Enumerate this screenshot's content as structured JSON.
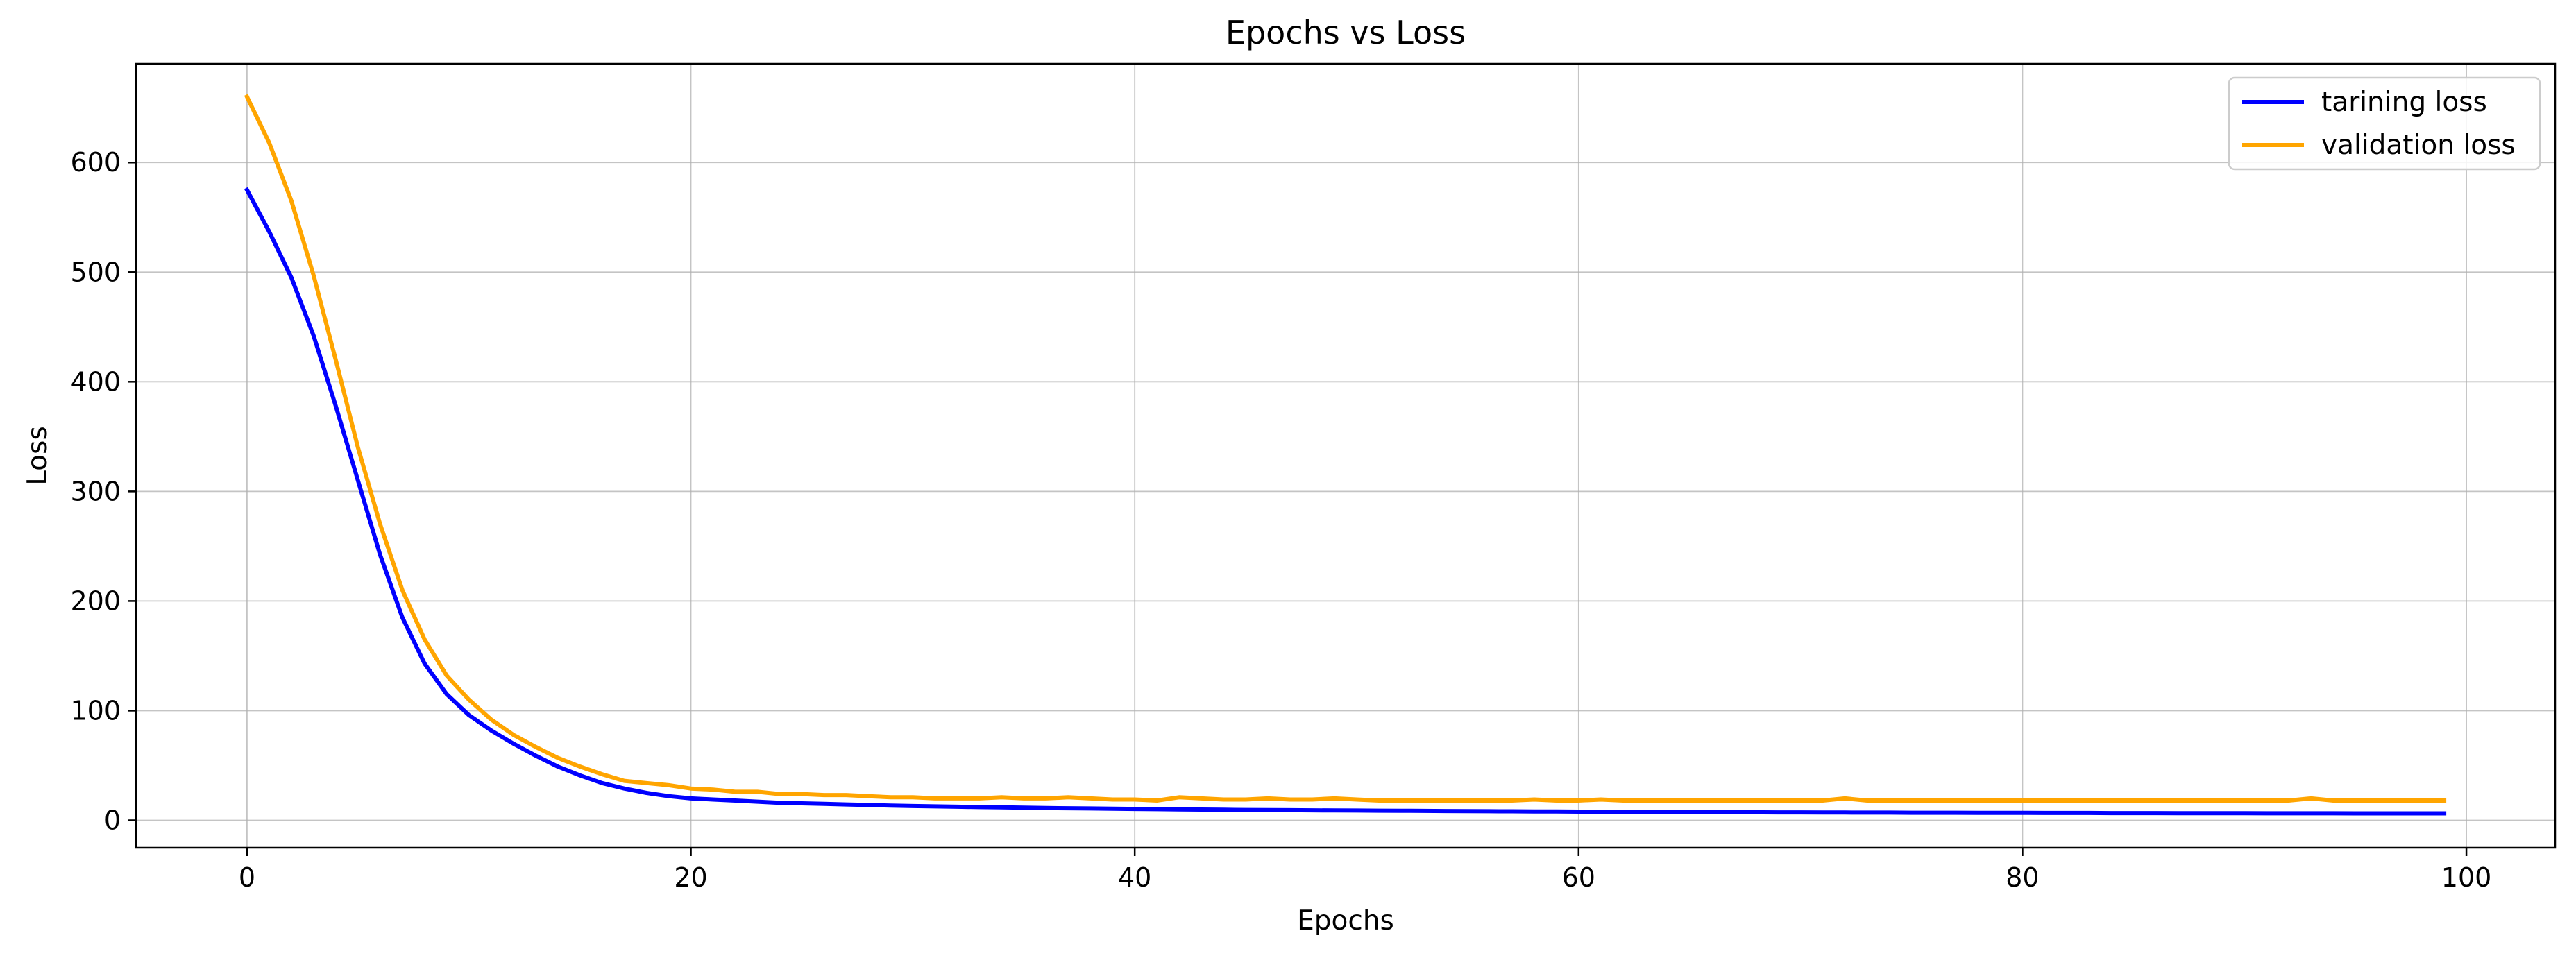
{
  "chart_data": {
    "type": "line",
    "title": "Epochs vs Loss",
    "xlabel": "Epochs",
    "ylabel": "Loss",
    "xlim": [
      -5,
      104
    ],
    "ylim": [
      -25,
      690
    ],
    "x_ticks": [
      0,
      20,
      40,
      60,
      80,
      100
    ],
    "y_ticks": [
      0,
      100,
      200,
      300,
      400,
      500,
      600
    ],
    "grid": true,
    "legend_position": "top-right",
    "x": [
      0,
      1,
      2,
      3,
      4,
      5,
      6,
      7,
      8,
      9,
      10,
      11,
      12,
      13,
      14,
      15,
      16,
      17,
      18,
      19,
      20,
      21,
      22,
      23,
      24,
      25,
      26,
      27,
      28,
      29,
      30,
      31,
      32,
      33,
      34,
      35,
      36,
      37,
      38,
      39,
      40,
      41,
      42,
      43,
      44,
      45,
      46,
      47,
      48,
      49,
      50,
      51,
      52,
      53,
      54,
      55,
      56,
      57,
      58,
      59,
      60,
      61,
      62,
      63,
      64,
      65,
      66,
      67,
      68,
      69,
      70,
      71,
      72,
      73,
      74,
      75,
      76,
      77,
      78,
      79,
      80,
      81,
      82,
      83,
      84,
      85,
      86,
      87,
      88,
      89,
      90,
      91,
      92,
      93,
      94,
      95,
      96,
      97,
      98,
      99
    ],
    "series": [
      {
        "name": "tarining loss",
        "color": "#0000ff",
        "values": [
          575,
          537,
          495,
          442,
          378,
          310,
          242,
          185,
          143,
          115,
          96,
          82,
          70,
          59,
          49,
          41,
          34,
          29,
          25,
          22,
          20,
          19,
          18,
          17,
          16,
          15.5,
          15,
          14.5,
          14,
          13.5,
          13,
          12.7,
          12.4,
          12.1,
          11.8,
          11.5,
          11.2,
          11,
          10.8,
          10.6,
          10.4,
          10.2,
          10,
          9.8,
          9.6,
          9.4,
          9.3,
          9.2,
          9.1,
          9,
          8.9,
          8.8,
          8.7,
          8.6,
          8.5,
          8.4,
          8.3,
          8.2,
          8.1,
          8,
          7.9,
          7.8,
          7.7,
          7.6,
          7.5,
          7.5,
          7.4,
          7.3,
          7.3,
          7.2,
          7.2,
          7.1,
          7.1,
          7,
          7,
          6.9,
          6.9,
          6.9,
          6.8,
          6.8,
          6.8,
          6.7,
          6.7,
          6.7,
          6.6,
          6.6,
          6.6,
          6.5,
          6.5,
          6.5,
          6.5,
          6.4,
          6.4,
          6.4,
          6.4,
          6.3,
          6.3,
          6.3,
          6.3,
          6.3
        ]
      },
      {
        "name": "validation loss",
        "color": "#ffa500",
        "values": [
          660,
          618,
          565,
          497,
          420,
          340,
          270,
          210,
          165,
          132,
          110,
          92,
          78,
          67,
          57,
          49,
          42,
          36,
          34,
          32,
          29,
          28,
          26,
          26,
          24,
          24,
          23,
          23,
          22,
          21,
          21,
          20,
          20,
          20,
          21,
          20,
          20,
          21,
          20,
          19,
          19,
          18,
          21,
          20,
          19,
          19,
          20,
          19,
          19,
          20,
          19,
          18,
          18,
          18,
          18,
          18,
          18,
          18,
          19,
          18,
          18,
          19,
          18,
          18,
          18,
          18,
          18,
          18,
          18,
          18,
          18,
          18,
          20,
          18,
          18,
          18,
          18,
          18,
          18,
          18,
          18,
          18,
          18,
          18,
          18,
          18,
          18,
          18,
          18,
          18,
          18,
          18,
          18,
          20,
          18,
          18,
          18,
          18,
          18,
          18
        ]
      }
    ]
  }
}
